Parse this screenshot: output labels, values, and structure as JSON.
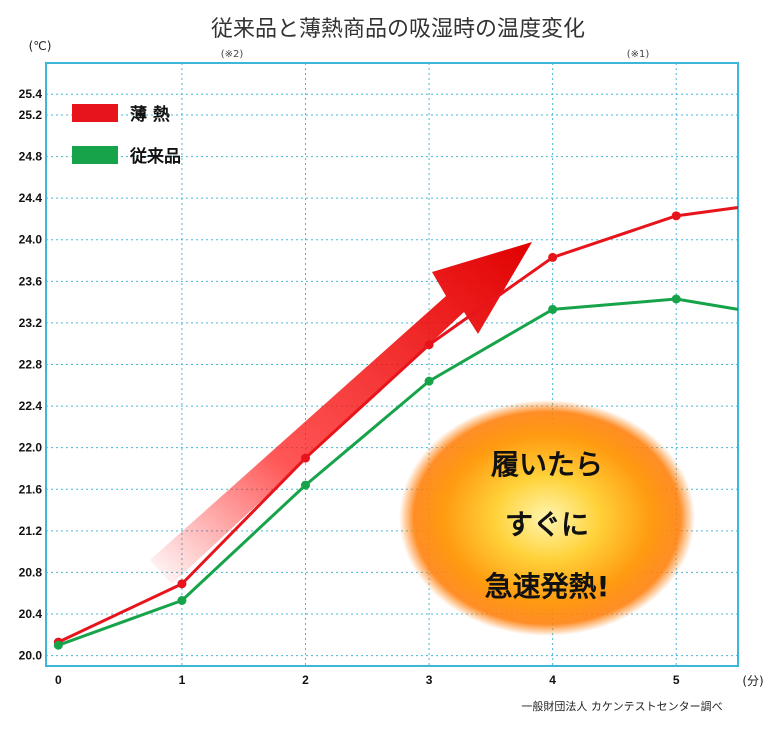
{
  "chart_data": {
    "type": "line",
    "title": "従来品と薄熱商品の吸湿時の温度変化",
    "ylabel": "(℃)",
    "xlabel": "(分)",
    "x": [
      0,
      1,
      2,
      3,
      4,
      5,
      5.5
    ],
    "xticks": [
      "0",
      "1",
      "2",
      "3",
      "4",
      "5"
    ],
    "xlim": [
      -0.1,
      5.5
    ],
    "yticks": [
      "20.0",
      "20.4",
      "20.8",
      "21.2",
      "21.6",
      "22.0",
      "22.4",
      "22.8",
      "23.2",
      "23.6",
      "24.0",
      "24.4",
      "24.8",
      "25.2",
      "25.4"
    ],
    "ylim": [
      19.9,
      25.7
    ],
    "grid": true,
    "legend_position": "top-left",
    "series": [
      {
        "name": "薄 熱",
        "color": "#e8141c",
        "values": [
          20.13,
          20.69,
          21.9,
          22.99,
          23.83,
          24.23,
          24.31
        ]
      },
      {
        "name": "従来品",
        "color": "#17a34a",
        "values": [
          20.1,
          20.53,
          21.64,
          22.64,
          23.33,
          23.43,
          23.33
        ]
      }
    ],
    "annotations": {
      "note_x1": "(※2)",
      "note_x5": "(※1)"
    }
  },
  "callout": {
    "lines": [
      "履いたら",
      "すぐに",
      "急速発熱!"
    ]
  },
  "source": "一般財団法人  カケンテストセンター調べ"
}
